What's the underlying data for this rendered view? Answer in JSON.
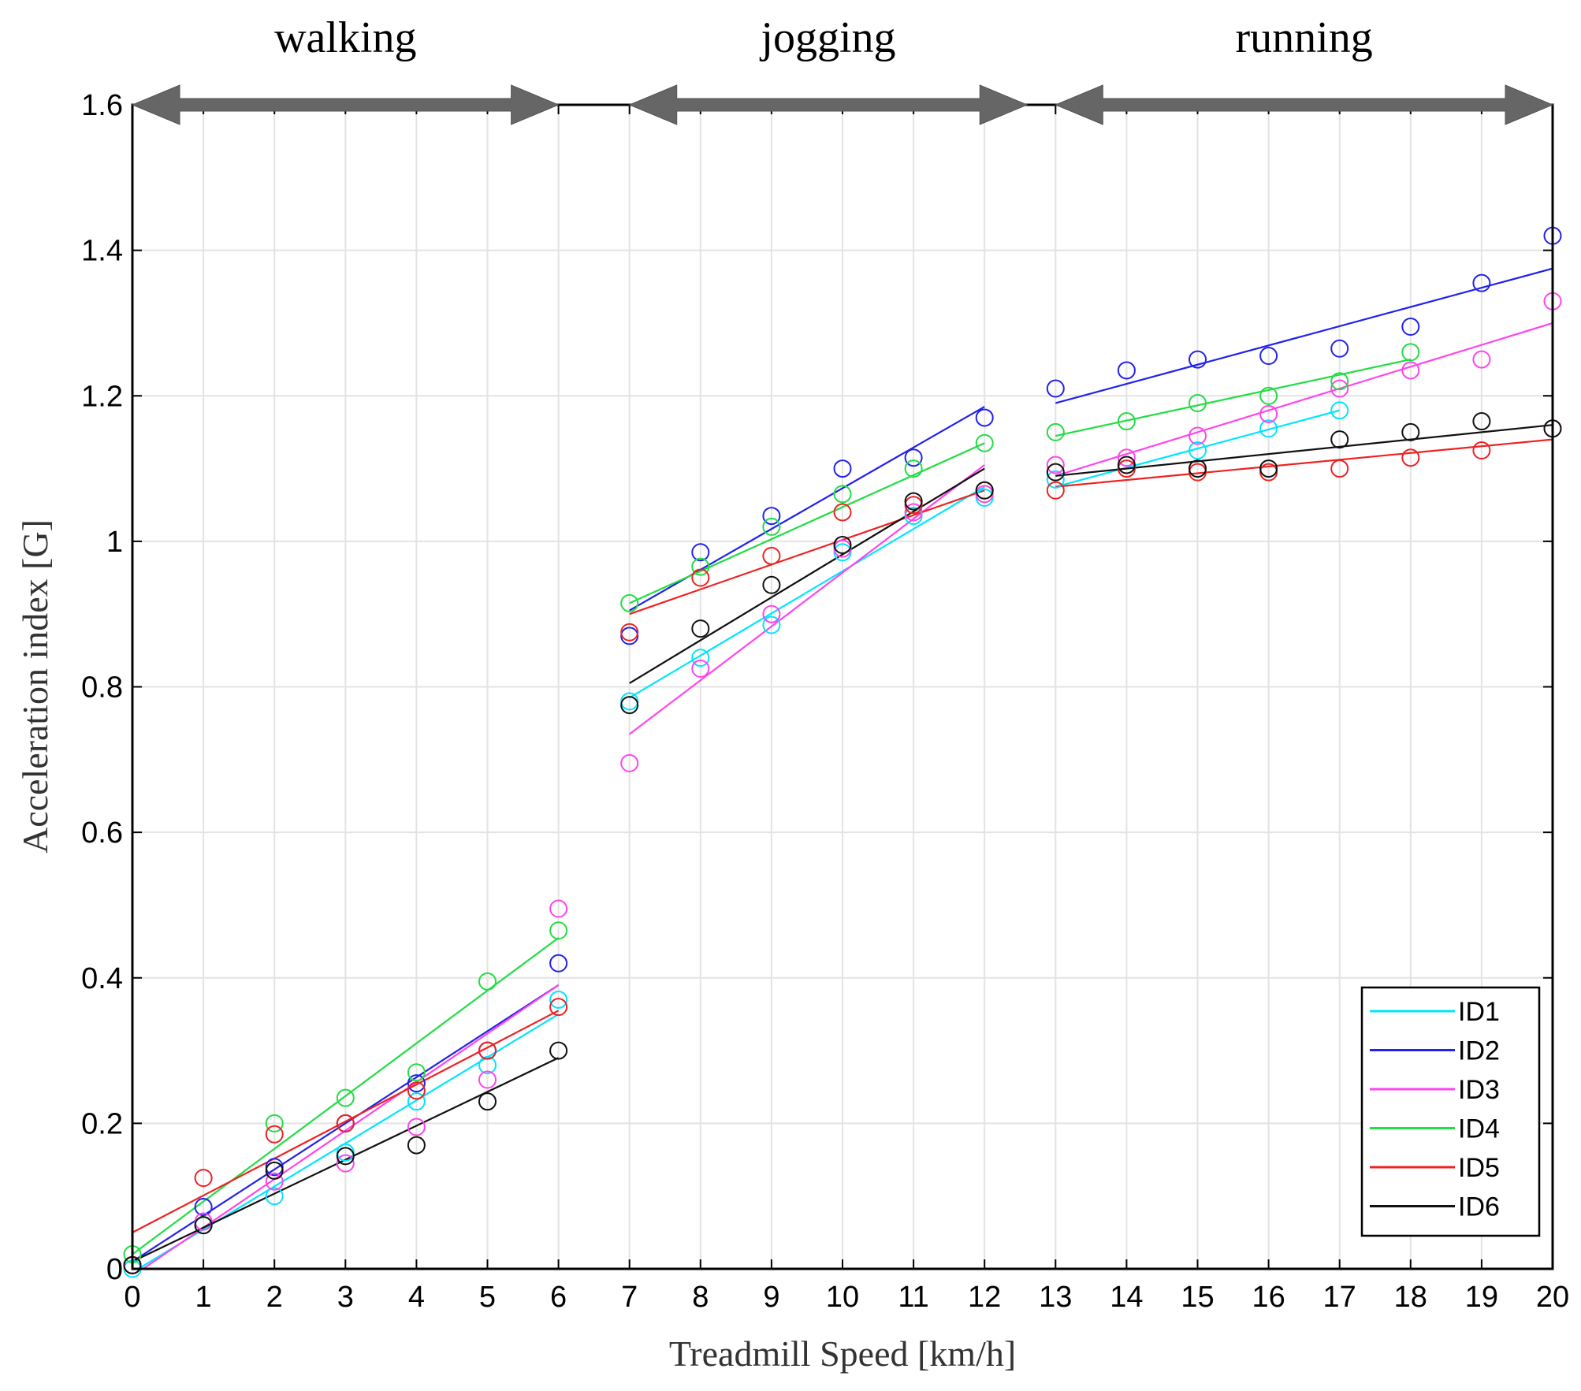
{
  "chart_data": {
    "type": "scatter",
    "xlabel": "Treadmill Speed [km/h]",
    "ylabel": "Acceleration index [G]",
    "xlim": [
      0,
      20
    ],
    "ylim": [
      0,
      1.6
    ],
    "xticks": [
      "0",
      "1",
      "2",
      "3",
      "4",
      "5",
      "6",
      "7",
      "8",
      "9",
      "10",
      "11",
      "12",
      "13",
      "14",
      "15",
      "16",
      "17",
      "18",
      "19",
      "20"
    ],
    "yticks": [
      "0",
      "0.2",
      "0.4",
      "0.6",
      "0.8",
      "1",
      "1.2",
      "1.4",
      "1.6"
    ],
    "grid": true,
    "legend_position": "bottom-right",
    "phases": [
      {
        "label": "walking",
        "start": 0,
        "end": 6
      },
      {
        "label": "jogging",
        "start": 7,
        "end": 12.6
      },
      {
        "label": "running",
        "start": 13,
        "end": 20
      }
    ],
    "series": [
      {
        "name": "ID1",
        "color": "#00e5ff",
        "points": [
          [
            0,
            0.0
          ],
          [
            1,
            0.06
          ],
          [
            2,
            0.1
          ],
          [
            3,
            0.16
          ],
          [
            4,
            0.23
          ],
          [
            5,
            0.28
          ],
          [
            6,
            0.37
          ],
          [
            7,
            0.78
          ],
          [
            8,
            0.84
          ],
          [
            9,
            0.885
          ],
          [
            10,
            0.985
          ],
          [
            11,
            1.035
          ],
          [
            12,
            1.06
          ],
          [
            13,
            1.085
          ],
          [
            14,
            1.1
          ],
          [
            15,
            1.125
          ],
          [
            16,
            1.155
          ],
          [
            17,
            1.18
          ]
        ],
        "fits": [
          [
            0,
            -0.005,
            6,
            0.35
          ],
          [
            7,
            0.785,
            12,
            1.075
          ],
          [
            13,
            1.075,
            17,
            1.18
          ]
        ]
      },
      {
        "name": "ID2",
        "color": "#2222ee",
        "points": [
          [
            0,
            0.005
          ],
          [
            1,
            0.085
          ],
          [
            2,
            0.14
          ],
          [
            3,
            0.2
          ],
          [
            4,
            0.255
          ],
          [
            5,
            0.3
          ],
          [
            6,
            0.42
          ],
          [
            7,
            0.87
          ],
          [
            8,
            0.985
          ],
          [
            9,
            1.035
          ],
          [
            10,
            1.1
          ],
          [
            11,
            1.115
          ],
          [
            12,
            1.17
          ],
          [
            13,
            1.21
          ],
          [
            14,
            1.235
          ],
          [
            15,
            1.25
          ],
          [
            16,
            1.255
          ],
          [
            17,
            1.265
          ],
          [
            18,
            1.295
          ],
          [
            19,
            1.355
          ],
          [
            20,
            1.42
          ]
        ],
        "fits": [
          [
            0,
            0.01,
            6,
            0.39
          ],
          [
            7,
            0.905,
            12,
            1.185
          ],
          [
            13,
            1.19,
            20,
            1.375
          ]
        ]
      },
      {
        "name": "ID3",
        "color": "#ff44ee",
        "points": [
          [
            0,
            0.005
          ],
          [
            1,
            0.065
          ],
          [
            2,
            0.12
          ],
          [
            3,
            0.145
          ],
          [
            4,
            0.195
          ],
          [
            5,
            0.26
          ],
          [
            6,
            0.495
          ],
          [
            7,
            0.695
          ],
          [
            8,
            0.825
          ],
          [
            9,
            0.9
          ],
          [
            10,
            0.99
          ],
          [
            11,
            1.04
          ],
          [
            12,
            1.065
          ],
          [
            13,
            1.105
          ],
          [
            14,
            1.115
          ],
          [
            15,
            1.145
          ],
          [
            16,
            1.175
          ],
          [
            17,
            1.21
          ],
          [
            18,
            1.235
          ],
          [
            19,
            1.25
          ],
          [
            20,
            1.33
          ]
        ],
        "fits": [
          [
            0,
            -0.01,
            6,
            0.39
          ],
          [
            7,
            0.735,
            12,
            1.105
          ],
          [
            13,
            1.09,
            20,
            1.3
          ]
        ]
      },
      {
        "name": "ID4",
        "color": "#22dd44",
        "points": [
          [
            0,
            0.02
          ],
          [
            1,
            0.06
          ],
          [
            2,
            0.2
          ],
          [
            3,
            0.235
          ],
          [
            4,
            0.27
          ],
          [
            5,
            0.395
          ],
          [
            6,
            0.465
          ],
          [
            7,
            0.915
          ],
          [
            8,
            0.965
          ],
          [
            9,
            1.02
          ],
          [
            10,
            1.065
          ],
          [
            11,
            1.1
          ],
          [
            12,
            1.135
          ],
          [
            13,
            1.15
          ],
          [
            14,
            1.165
          ],
          [
            15,
            1.19
          ],
          [
            16,
            1.2
          ],
          [
            17,
            1.22
          ],
          [
            18,
            1.26
          ]
        ],
        "fits": [
          [
            0,
            0.02,
            6,
            0.455
          ],
          [
            7,
            0.915,
            12,
            1.135
          ],
          [
            13,
            1.145,
            18,
            1.25
          ]
        ]
      },
      {
        "name": "ID5",
        "color": "#ee2222",
        "points": [
          [
            0,
            0.005
          ],
          [
            1,
            0.125
          ],
          [
            2,
            0.185
          ],
          [
            3,
            0.2
          ],
          [
            4,
            0.245
          ],
          [
            5,
            0.3
          ],
          [
            6,
            0.36
          ],
          [
            7,
            0.875
          ],
          [
            8,
            0.95
          ],
          [
            9,
            0.98
          ],
          [
            10,
            1.04
          ],
          [
            11,
            1.05
          ],
          [
            12,
            1.07
          ],
          [
            13,
            1.07
          ],
          [
            14,
            1.1
          ],
          [
            15,
            1.095
          ],
          [
            16,
            1.095
          ],
          [
            17,
            1.1
          ],
          [
            18,
            1.115
          ],
          [
            19,
            1.125
          ],
          [
            20,
            1.155
          ]
        ],
        "fits": [
          [
            0,
            0.05,
            6,
            0.355
          ],
          [
            7,
            0.9,
            12,
            1.07
          ],
          [
            13,
            1.075,
            20,
            1.14
          ]
        ]
      },
      {
        "name": "ID6",
        "color": "#111111",
        "points": [
          [
            0,
            0.005
          ],
          [
            1,
            0.06
          ],
          [
            2,
            0.135
          ],
          [
            3,
            0.155
          ],
          [
            4,
            0.17
          ],
          [
            5,
            0.23
          ],
          [
            6,
            0.3
          ],
          [
            7,
            0.775
          ],
          [
            8,
            0.88
          ],
          [
            9,
            0.94
          ],
          [
            10,
            0.995
          ],
          [
            11,
            1.055
          ],
          [
            12,
            1.07
          ],
          [
            13,
            1.095
          ],
          [
            14,
            1.105
          ],
          [
            15,
            1.1
          ],
          [
            16,
            1.1
          ],
          [
            17,
            1.14
          ],
          [
            18,
            1.15
          ],
          [
            19,
            1.165
          ],
          [
            20,
            1.155
          ]
        ],
        "fits": [
          [
            0,
            0.01,
            6,
            0.29
          ],
          [
            7,
            0.805,
            12,
            1.1
          ],
          [
            13,
            1.09,
            20,
            1.16
          ]
        ]
      }
    ]
  }
}
